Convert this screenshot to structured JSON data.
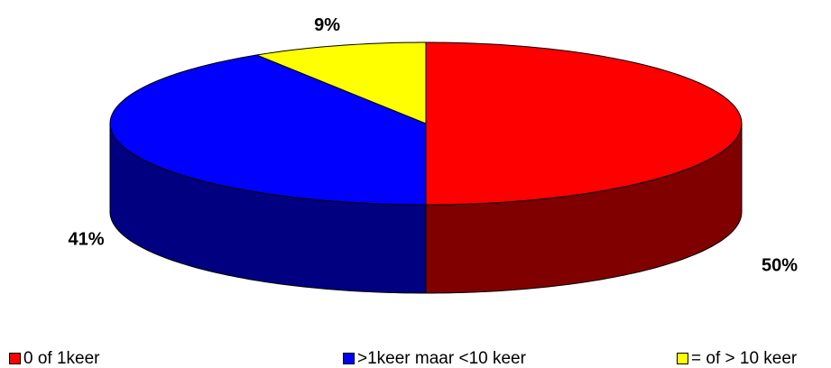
{
  "chart_data": {
    "type": "pie3d",
    "categories": [
      "0 of 1keer",
      ">1keer maar <10 keer",
      "= of > 10 keer"
    ],
    "values": [
      50,
      41,
      9
    ],
    "value_labels": [
      "50%",
      "41%",
      "9%"
    ],
    "colors": [
      "#ff0000",
      "#0000ff",
      "#ffff00"
    ],
    "side_colors": [
      "#800000",
      "#000080",
      "#808000"
    ],
    "legend": "bottom"
  }
}
